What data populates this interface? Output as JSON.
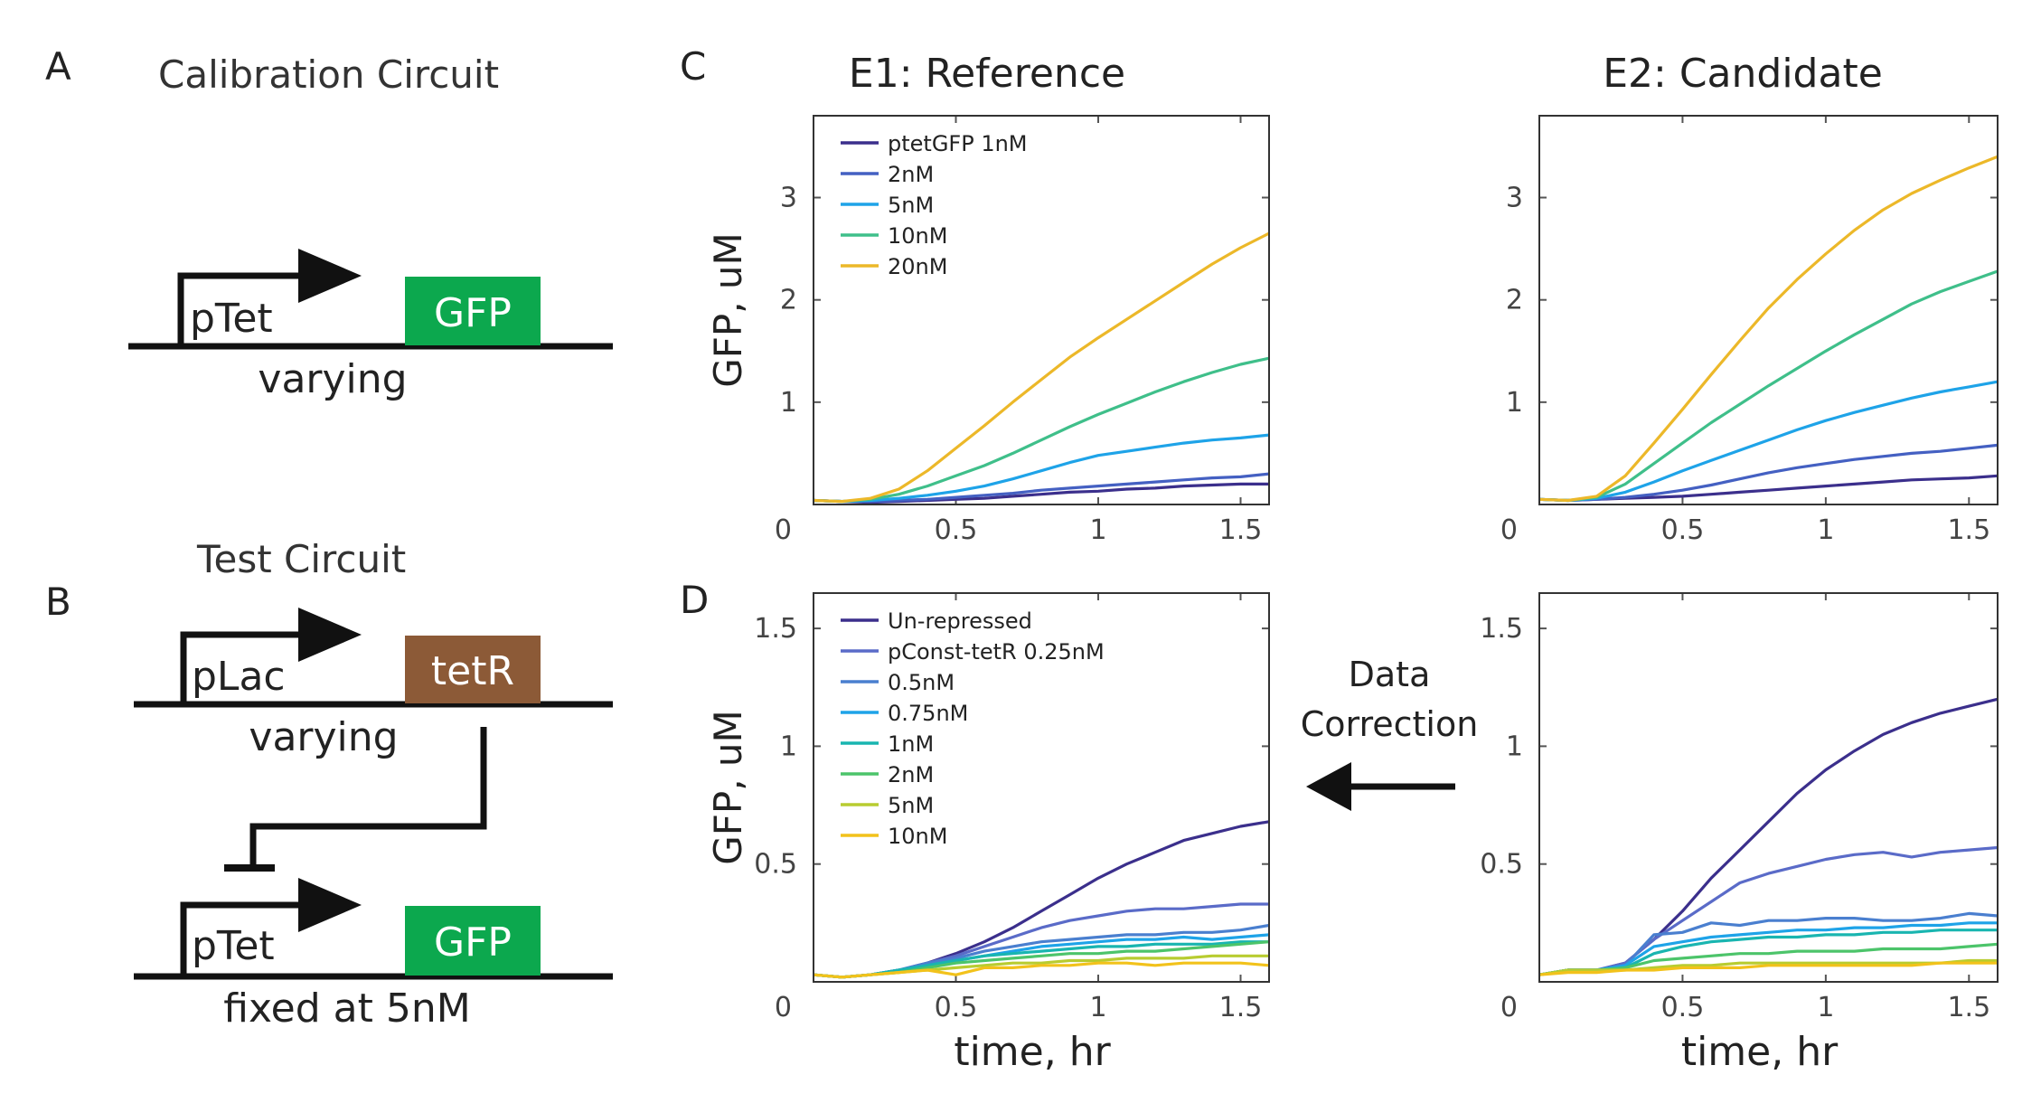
{
  "panels": {
    "A": {
      "letter": "A",
      "title": "Calibration Circuit",
      "promoter": "pTet",
      "gene": "GFP",
      "caption": "varying",
      "gene_color": "#0ca84e"
    },
    "B": {
      "letter": "B",
      "title": "Test Circuit",
      "promoter1": "pLac",
      "gene1": "tetR",
      "caption1": "varying",
      "gene1_color": "#8c5a37",
      "promoter2": "pTet",
      "gene2": "GFP",
      "caption2": "fixed at 5nM",
      "gene2_color": "#0ca84e"
    },
    "C": {
      "letter": "C"
    },
    "D": {
      "letter": "D"
    }
  },
  "column_titles": {
    "reference": "E1: Reference",
    "candidate": "E2: Candidate"
  },
  "correction": {
    "line1": "Data",
    "line2": "Correction",
    "arrow_icon": "left-arrow-icon"
  },
  "chart_data": [
    {
      "id": "C-E1",
      "type": "line",
      "title": "E1: Reference",
      "xlabel": "",
      "ylabel": "GFP, uM",
      "xlim": [
        0,
        1.6
      ],
      "ylim": [
        0,
        3.8
      ],
      "xticks": [
        0.5,
        1,
        1.5
      ],
      "xtick_labels": [
        "0.5",
        "1",
        "1.5"
      ],
      "yticks": [
        1,
        2,
        3
      ],
      "ytick_labels": [
        "1",
        "2",
        "3"
      ],
      "origin_label": "0",
      "legend_position": "top-left",
      "x": [
        0,
        0.1,
        0.2,
        0.3,
        0.4,
        0.5,
        0.6,
        0.7,
        0.8,
        0.9,
        1.0,
        1.1,
        1.2,
        1.3,
        1.4,
        1.5,
        1.6
      ],
      "series": [
        {
          "name": "ptetGFP 1nM",
          "color": "#3b2f8c",
          "values": [
            0.04,
            0.03,
            0.02,
            0.03,
            0.04,
            0.05,
            0.06,
            0.08,
            0.1,
            0.12,
            0.13,
            0.15,
            0.16,
            0.18,
            0.19,
            0.2,
            0.2
          ]
        },
        {
          "name": "2nM",
          "color": "#4460c2",
          "values": [
            0.04,
            0.03,
            0.03,
            0.04,
            0.05,
            0.07,
            0.09,
            0.11,
            0.14,
            0.16,
            0.18,
            0.2,
            0.22,
            0.24,
            0.26,
            0.27,
            0.3
          ]
        },
        {
          "name": "5nM",
          "color": "#1ea3e8",
          "values": [
            0.04,
            0.03,
            0.04,
            0.06,
            0.09,
            0.13,
            0.18,
            0.25,
            0.33,
            0.41,
            0.48,
            0.52,
            0.56,
            0.6,
            0.63,
            0.65,
            0.68
          ]
        },
        {
          "name": "10nM",
          "color": "#3fbf8a",
          "values": [
            0.04,
            0.03,
            0.05,
            0.1,
            0.18,
            0.28,
            0.38,
            0.5,
            0.63,
            0.76,
            0.88,
            0.99,
            1.1,
            1.2,
            1.29,
            1.37,
            1.43
          ]
        },
        {
          "name": "20nM",
          "color": "#ecb829",
          "values": [
            0.04,
            0.03,
            0.06,
            0.15,
            0.33,
            0.55,
            0.77,
            1.0,
            1.22,
            1.44,
            1.63,
            1.81,
            1.99,
            2.17,
            2.35,
            2.51,
            2.65
          ]
        }
      ]
    },
    {
      "id": "C-E2",
      "type": "line",
      "title": "E2: Candidate",
      "xlabel": "",
      "ylabel": "",
      "xlim": [
        0,
        1.6
      ],
      "ylim": [
        0,
        3.8
      ],
      "xticks": [
        0.5,
        1,
        1.5
      ],
      "xtick_labels": [
        "0.5",
        "1",
        "1.5"
      ],
      "yticks": [
        1,
        2,
        3
      ],
      "ytick_labels": [
        "1",
        "2",
        "3"
      ],
      "origin_label": "0",
      "x": [
        0,
        0.1,
        0.2,
        0.3,
        0.4,
        0.5,
        0.6,
        0.7,
        0.8,
        0.9,
        1.0,
        1.1,
        1.2,
        1.3,
        1.4,
        1.5,
        1.6
      ],
      "series": [
        {
          "color": "#3b2f8c",
          "values": [
            0.05,
            0.04,
            0.05,
            0.06,
            0.07,
            0.08,
            0.1,
            0.12,
            0.14,
            0.16,
            0.18,
            0.2,
            0.22,
            0.24,
            0.25,
            0.26,
            0.28
          ]
        },
        {
          "color": "#4460c2",
          "values": [
            0.05,
            0.04,
            0.05,
            0.07,
            0.1,
            0.14,
            0.19,
            0.25,
            0.31,
            0.36,
            0.4,
            0.44,
            0.47,
            0.5,
            0.52,
            0.55,
            0.58
          ]
        },
        {
          "color": "#1ea3e8",
          "values": [
            0.05,
            0.04,
            0.06,
            0.12,
            0.22,
            0.33,
            0.43,
            0.53,
            0.63,
            0.73,
            0.82,
            0.9,
            0.97,
            1.04,
            1.1,
            1.15,
            1.2
          ]
        },
        {
          "color": "#3fbf8a",
          "values": [
            0.05,
            0.04,
            0.07,
            0.2,
            0.4,
            0.6,
            0.8,
            0.98,
            1.16,
            1.33,
            1.5,
            1.66,
            1.81,
            1.96,
            2.08,
            2.18,
            2.28
          ]
        },
        {
          "color": "#ecb829",
          "values": [
            0.05,
            0.04,
            0.08,
            0.28,
            0.6,
            0.93,
            1.27,
            1.6,
            1.92,
            2.2,
            2.45,
            2.68,
            2.88,
            3.04,
            3.17,
            3.29,
            3.4
          ]
        }
      ]
    },
    {
      "id": "D-E1",
      "type": "line",
      "title": "",
      "xlabel": "time, hr",
      "ylabel": "GFP, uM",
      "xlim": [
        0,
        1.6
      ],
      "ylim": [
        0,
        1.65
      ],
      "xticks": [
        0.5,
        1,
        1.5
      ],
      "xtick_labels": [
        "0.5",
        "1",
        "1.5"
      ],
      "yticks": [
        0.5,
        1,
        1.5
      ],
      "ytick_labels": [
        "0.5",
        "1",
        "1.5"
      ],
      "origin_label": "0",
      "legend_position": "top-left",
      "x": [
        0,
        0.1,
        0.2,
        0.3,
        0.4,
        0.5,
        0.6,
        0.7,
        0.8,
        0.9,
        1.0,
        1.1,
        1.2,
        1.3,
        1.4,
        1.5,
        1.6
      ],
      "series": [
        {
          "name": "Un-repressed",
          "color": "#3b2f8c",
          "values": [
            0.03,
            0.02,
            0.03,
            0.05,
            0.08,
            0.12,
            0.17,
            0.23,
            0.3,
            0.37,
            0.44,
            0.5,
            0.55,
            0.6,
            0.63,
            0.66,
            0.68
          ]
        },
        {
          "name": "pConst-tetR 0.25nM",
          "color": "#5a6bc8",
          "values": [
            0.03,
            0.02,
            0.03,
            0.05,
            0.08,
            0.11,
            0.15,
            0.19,
            0.23,
            0.26,
            0.28,
            0.3,
            0.31,
            0.31,
            0.32,
            0.33,
            0.33
          ]
        },
        {
          "name": "0.5nM",
          "color": "#4a7fcf",
          "values": [
            0.03,
            0.02,
            0.03,
            0.05,
            0.08,
            0.1,
            0.13,
            0.15,
            0.17,
            0.18,
            0.19,
            0.2,
            0.2,
            0.21,
            0.21,
            0.22,
            0.24
          ]
        },
        {
          "name": "0.75nM",
          "color": "#1ea3e8",
          "values": [
            0.03,
            0.02,
            0.03,
            0.05,
            0.07,
            0.09,
            0.11,
            0.13,
            0.15,
            0.16,
            0.17,
            0.18,
            0.18,
            0.19,
            0.18,
            0.19,
            0.2
          ]
        },
        {
          "name": "1nM",
          "color": "#19b5b0",
          "values": [
            0.03,
            0.02,
            0.03,
            0.05,
            0.07,
            0.09,
            0.11,
            0.12,
            0.13,
            0.14,
            0.15,
            0.15,
            0.16,
            0.16,
            0.16,
            0.17,
            0.17
          ]
        },
        {
          "name": "2nM",
          "color": "#4cc46a",
          "values": [
            0.03,
            0.02,
            0.03,
            0.04,
            0.06,
            0.08,
            0.09,
            0.1,
            0.11,
            0.12,
            0.12,
            0.13,
            0.13,
            0.14,
            0.15,
            0.16,
            0.17
          ]
        },
        {
          "name": "5nM",
          "color": "#b8cc30",
          "values": [
            0.03,
            0.02,
            0.03,
            0.04,
            0.05,
            0.06,
            0.07,
            0.08,
            0.08,
            0.09,
            0.09,
            0.1,
            0.1,
            0.1,
            0.11,
            0.11,
            0.11
          ]
        },
        {
          "name": "10nM",
          "color": "#f2c21b",
          "values": [
            0.03,
            0.02,
            0.03,
            0.04,
            0.05,
            0.03,
            0.06,
            0.06,
            0.07,
            0.07,
            0.08,
            0.08,
            0.07,
            0.08,
            0.08,
            0.08,
            0.07
          ]
        }
      ]
    },
    {
      "id": "D-E2",
      "type": "line",
      "title": "",
      "xlabel": "time, hr",
      "ylabel": "",
      "xlim": [
        0,
        1.6
      ],
      "ylim": [
        0,
        1.65
      ],
      "xticks": [
        0.5,
        1,
        1.5
      ],
      "xtick_labels": [
        "0.5",
        "1",
        "1.5"
      ],
      "yticks": [
        0.5,
        1,
        1.5
      ],
      "ytick_labels": [
        "0.5",
        "1",
        "1.5"
      ],
      "origin_label": "0",
      "x": [
        0,
        0.1,
        0.2,
        0.3,
        0.4,
        0.5,
        0.6,
        0.7,
        0.8,
        0.9,
        1.0,
        1.1,
        1.2,
        1.3,
        1.4,
        1.5,
        1.6
      ],
      "series": [
        {
          "color": "#3b2f8c",
          "values": [
            0.03,
            0.05,
            0.05,
            0.08,
            0.18,
            0.3,
            0.44,
            0.56,
            0.68,
            0.8,
            0.9,
            0.98,
            1.05,
            1.1,
            1.14,
            1.17,
            1.2
          ]
        },
        {
          "color": "#5a6bc8",
          "values": [
            0.03,
            0.05,
            0.05,
            0.08,
            0.18,
            0.26,
            0.34,
            0.42,
            0.46,
            0.49,
            0.52,
            0.54,
            0.55,
            0.53,
            0.55,
            0.56,
            0.57
          ]
        },
        {
          "color": "#4a7fcf",
          "values": [
            0.03,
            0.05,
            0.05,
            0.07,
            0.2,
            0.21,
            0.25,
            0.24,
            0.26,
            0.26,
            0.27,
            0.27,
            0.26,
            0.26,
            0.27,
            0.29,
            0.28
          ]
        },
        {
          "color": "#1ea3e8",
          "values": [
            0.03,
            0.05,
            0.05,
            0.07,
            0.15,
            0.17,
            0.19,
            0.2,
            0.21,
            0.22,
            0.22,
            0.23,
            0.23,
            0.24,
            0.24,
            0.25,
            0.25
          ]
        },
        {
          "color": "#19b5b0",
          "values": [
            0.03,
            0.05,
            0.05,
            0.06,
            0.12,
            0.15,
            0.17,
            0.18,
            0.19,
            0.19,
            0.2,
            0.2,
            0.21,
            0.21,
            0.22,
            0.22,
            0.22
          ]
        },
        {
          "color": "#4cc46a",
          "values": [
            0.03,
            0.05,
            0.05,
            0.06,
            0.09,
            0.1,
            0.11,
            0.12,
            0.12,
            0.13,
            0.13,
            0.13,
            0.14,
            0.14,
            0.14,
            0.15,
            0.16
          ]
        },
        {
          "color": "#b8cc30",
          "values": [
            0.03,
            0.05,
            0.05,
            0.05,
            0.06,
            0.07,
            0.07,
            0.08,
            0.08,
            0.08,
            0.08,
            0.08,
            0.08,
            0.08,
            0.08,
            0.09,
            0.09
          ]
        },
        {
          "color": "#f2c21b",
          "values": [
            0.03,
            0.04,
            0.04,
            0.05,
            0.05,
            0.06,
            0.06,
            0.06,
            0.07,
            0.07,
            0.07,
            0.07,
            0.07,
            0.07,
            0.08,
            0.08,
            0.08
          ]
        }
      ]
    }
  ]
}
